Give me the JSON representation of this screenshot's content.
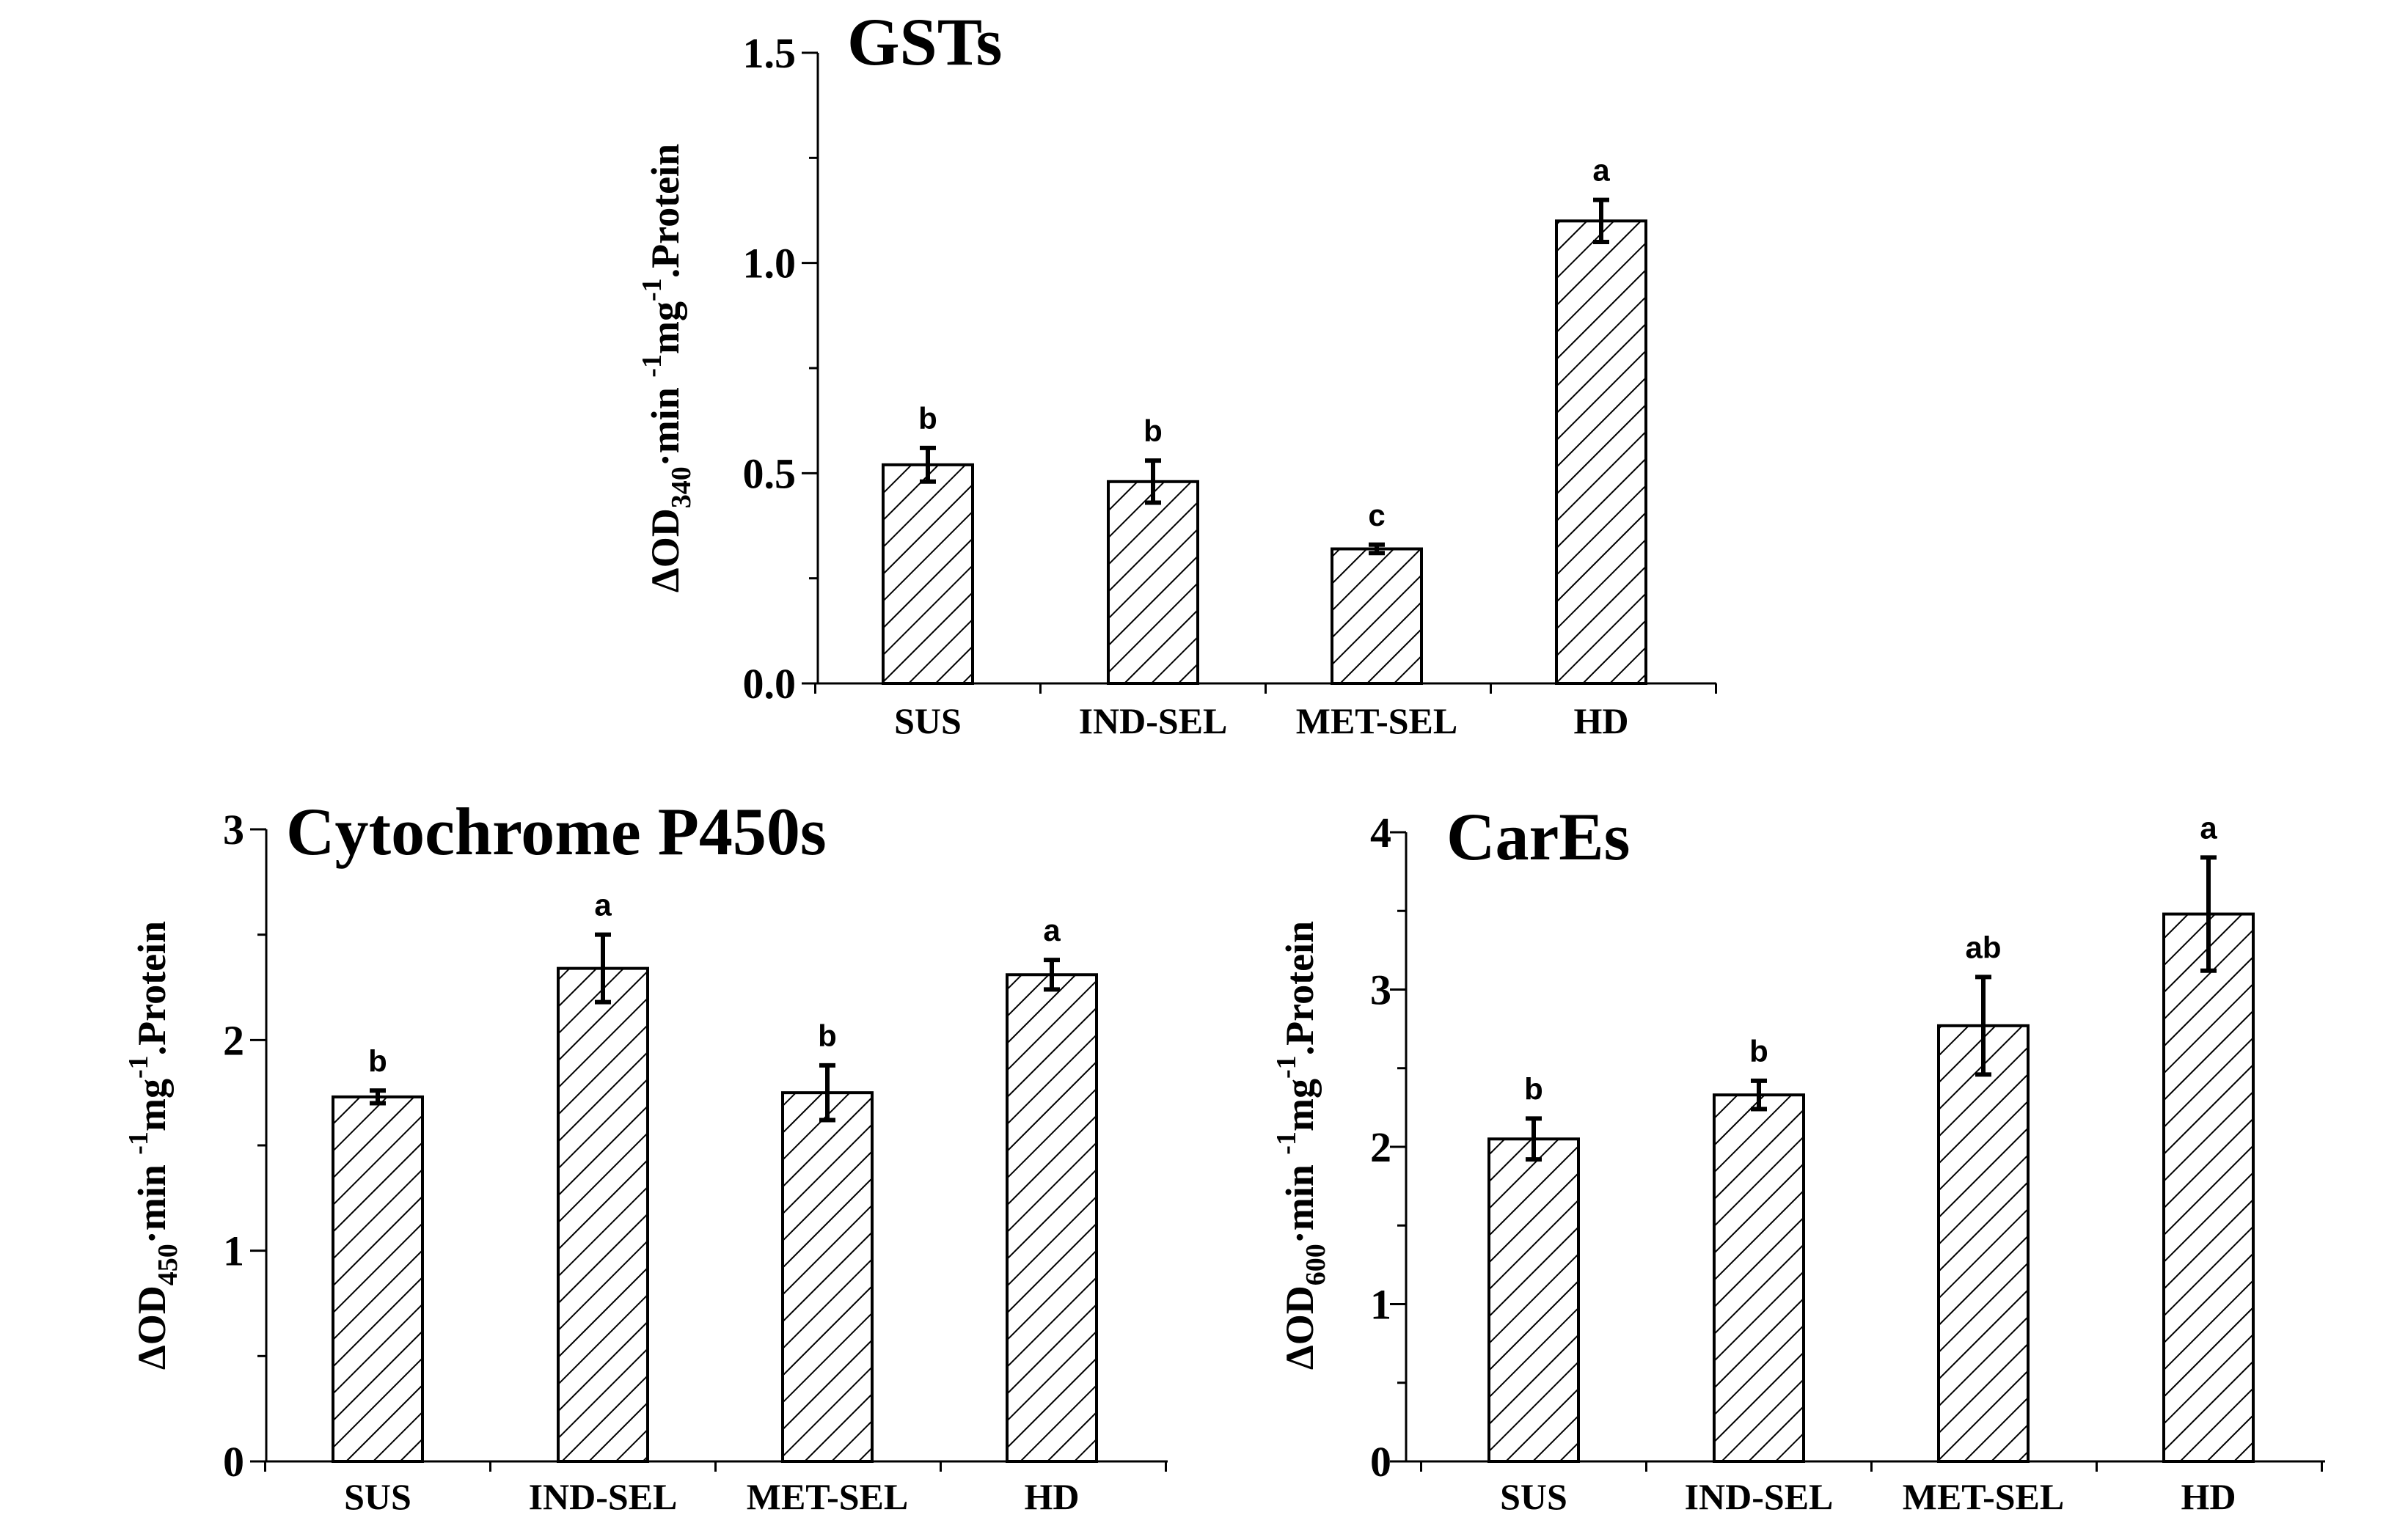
{
  "chart_data": [
    {
      "id": "gst",
      "type": "bar",
      "title": "GSTs",
      "ylabel": {
        "prefix": "ΔOD",
        "sub": "340",
        "mid": "·min ",
        "sup1": "-1",
        "mg": "mg",
        "sup2": "-1",
        "suffix": ".Protein"
      },
      "ylim": [
        0,
        1.5
      ],
      "yticks": [
        0.0,
        0.5,
        1.0,
        1.5
      ],
      "ytick_labels": [
        "0.0",
        "0.5",
        "1.0",
        "1.5"
      ],
      "categories": [
        "SUS",
        "IND-SEL",
        "MET-SEL",
        "HD"
      ],
      "values": [
        0.52,
        0.48,
        0.32,
        1.1
      ],
      "errors": [
        0.04,
        0.05,
        0.01,
        0.05
      ],
      "significance": [
        "b",
        "b",
        "c",
        "a"
      ],
      "bar_pattern": "diagonal-hatch"
    },
    {
      "id": "p450",
      "type": "bar",
      "title": "Cytochrome P450s",
      "ylabel": {
        "prefix": "ΔOD",
        "sub": "450",
        "mid": "·min ",
        "sup1": "-1",
        "mg": "mg",
        "sup2": "-1",
        "suffix": ".Protein"
      },
      "ylim": [
        0,
        3
      ],
      "yticks": [
        0,
        1,
        2,
        3
      ],
      "ytick_labels": [
        "0",
        "1",
        "2",
        "3"
      ],
      "categories": [
        "SUS",
        "IND-SEL",
        "MET-SEL",
        "HD"
      ],
      "values": [
        1.73,
        2.34,
        1.75,
        2.31
      ],
      "errors": [
        0.03,
        0.16,
        0.13,
        0.07
      ],
      "significance": [
        "b",
        "a",
        "b",
        "a"
      ],
      "bar_pattern": "diagonal-hatch"
    },
    {
      "id": "care",
      "type": "bar",
      "title": "CarEs",
      "ylabel": {
        "prefix": "ΔOD",
        "sub": "600",
        "mid": "·min ",
        "sup1": "-1",
        "mg": "mg",
        "sup2": "-1",
        "suffix": ".Protein"
      },
      "ylim": [
        0,
        4
      ],
      "yticks": [
        0,
        1,
        2,
        3,
        4
      ],
      "ytick_labels": [
        "0",
        "1",
        "2",
        "3",
        "4"
      ],
      "categories": [
        "SUS",
        "IND-SEL",
        "MET-SEL",
        "HD"
      ],
      "values": [
        2.05,
        2.33,
        2.77,
        3.48
      ],
      "errors": [
        0.13,
        0.09,
        0.31,
        0.36
      ],
      "significance": [
        "b",
        "b",
        "ab",
        "a"
      ],
      "bar_pattern": "diagonal-hatch"
    }
  ]
}
